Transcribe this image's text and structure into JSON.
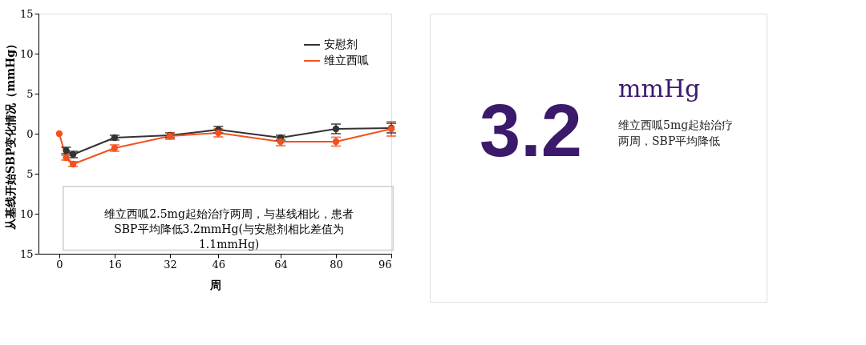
{
  "chart_data": [
    {
      "type": "line",
      "xlabel": "周",
      "ylabel": "从基线开始SBP变化情况（mmHg）",
      "xlim": [
        -6,
        96
      ],
      "xticks": [
        0,
        16,
        32,
        46,
        64,
        80,
        96
      ],
      "ylim": [
        -15,
        15
      ],
      "yticks": [
        {
          "value": -15,
          "label": "15"
        },
        {
          "value": -10,
          "label": "10"
        },
        {
          "value": -5,
          "label": "5"
        },
        0,
        5,
        10,
        15
      ],
      "series": [
        {
          "name": "安慰剂",
          "color": "#333333",
          "x": [
            2,
            4,
            16,
            32,
            46,
            64,
            80,
            96
          ],
          "values": [
            -2.1,
            -2.6,
            -0.5,
            -0.2,
            0.5,
            -0.5,
            0.6,
            0.7
          ],
          "errors": [
            0.4,
            0.4,
            0.3,
            0.3,
            0.4,
            0.3,
            0.6,
            0.6
          ]
        },
        {
          "name": "维立西呱",
          "color": "#f4511e",
          "x": [
            0,
            2,
            4,
            16,
            32,
            46,
            64,
            80,
            96
          ],
          "values": [
            0,
            -3.0,
            -3.8,
            -1.8,
            -0.3,
            0.1,
            -1.0,
            -1.0,
            0.6
          ],
          "errors": [
            null,
            0.3,
            0.3,
            0.4,
            0.4,
            0.5,
            0.5,
            0.55,
            0.9
          ]
        }
      ],
      "annotations": [
        "维立西呱2.5mg起始治疗两周，与基线相比，患者\nSBP平均降低3.2mmHg(与安慰剂相比差值为\n1.1mmHg)"
      ],
      "legend": "top right",
      "marker": "circle",
      "line_style": "solid",
      "grid": false
    },
    {
      "type": "other",
      "annotations": [
        "3.2",
        "mmHg",
        "维立西呱5mg起始治疗两周，SBP平均降低"
      ]
    }
  ]
}
